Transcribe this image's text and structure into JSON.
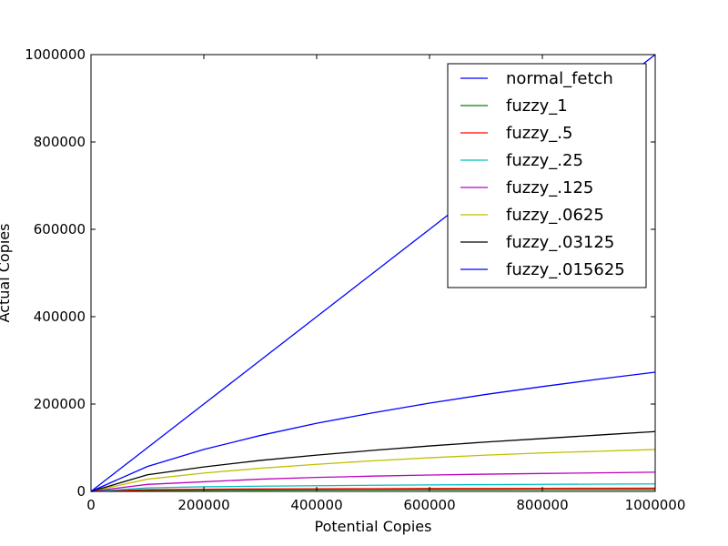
{
  "chart_data": {
    "type": "line",
    "title": "",
    "xlabel": "Potential Copies",
    "ylabel": "Actual Copies",
    "xlim": [
      0,
      1000000
    ],
    "ylim": [
      0,
      1000000
    ],
    "xticks": [
      0,
      200000,
      400000,
      600000,
      800000,
      1000000
    ],
    "yticks": [
      0,
      200000,
      400000,
      600000,
      800000,
      1000000
    ],
    "xtick_labels": [
      "0",
      "200000",
      "400000",
      "600000",
      "800000",
      "1000000"
    ],
    "ytick_labels": [
      "0",
      "200000",
      "400000",
      "600000",
      "800000",
      "1000000"
    ],
    "grid": false,
    "legend_position": "top-right",
    "x": [
      0,
      100000,
      200000,
      300000,
      400000,
      500000,
      600000,
      700000,
      800000,
      900000,
      1000000
    ],
    "series": [
      {
        "name": "normal_fetch",
        "color": "#0000ff",
        "values": [
          0,
          100000,
          200000,
          300000,
          400000,
          500000,
          600000,
          700000,
          800000,
          900000,
          1000000
        ]
      },
      {
        "name": "fuzzy_1",
        "color": "#008000",
        "values": [
          0,
          2500,
          3000,
          3300,
          3500,
          3700,
          3850,
          4000,
          4100,
          4200,
          4300
        ]
      },
      {
        "name": "fuzzy_.5",
        "color": "#ff0000",
        "values": [
          0,
          4000,
          5000,
          5600,
          6000,
          6300,
          6600,
          6800,
          7000,
          7200,
          7400
        ]
      },
      {
        "name": "fuzzy_.25",
        "color": "#00bfbf",
        "values": [
          0,
          8000,
          10500,
          12000,
          13000,
          14000,
          14800,
          15500,
          16100,
          16700,
          17200
        ]
      },
      {
        "name": "fuzzy_.125",
        "color": "#bf00bf",
        "values": [
          0,
          16000,
          22000,
          28000,
          32000,
          35000,
          37500,
          39500,
          41000,
          42500,
          44000
        ]
      },
      {
        "name": "fuzzy_.0625",
        "color": "#bfbf00",
        "values": [
          0,
          28000,
          42000,
          53000,
          62000,
          70000,
          77000,
          83000,
          88000,
          92000,
          96000
        ]
      },
      {
        "name": "fuzzy_.03125",
        "color": "#000000",
        "values": [
          0,
          38000,
          56000,
          71000,
          83000,
          94000,
          104000,
          113000,
          121000,
          129000,
          137000
        ]
      },
      {
        "name": "fuzzy_.015625",
        "color": "#0000ff",
        "values": [
          0,
          57000,
          96000,
          128000,
          156000,
          180000,
          202000,
          222000,
          240000,
          257000,
          273000
        ]
      }
    ]
  }
}
